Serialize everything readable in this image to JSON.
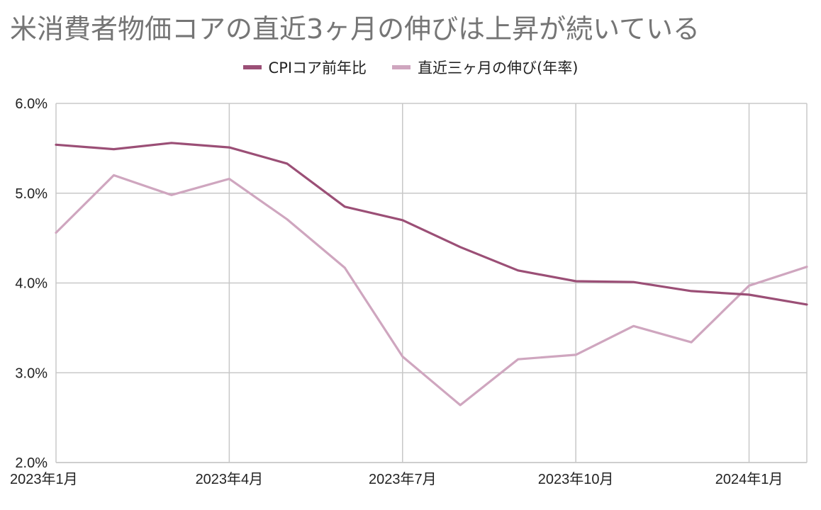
{
  "chart_data": {
    "type": "line",
    "title": "米消費者物価コアの直近3ヶ月の伸びは上昇が続いている",
    "xlabel": "",
    "ylabel": "",
    "x": [
      "2023年1月",
      "2023年2月",
      "2023年3月",
      "2023年4月",
      "2023年5月",
      "2023年6月",
      "2023年7月",
      "2023年8月",
      "2023年9月",
      "2023年10月",
      "2023年11月",
      "2023年12月",
      "2024年1月",
      "2024年2月"
    ],
    "x_tick_labels": [
      "2023年1月",
      "2023年4月",
      "2023年7月",
      "2023年10月",
      "2024年1月"
    ],
    "y_tick_labels": [
      "6.0%",
      "5.0%",
      "4.0%",
      "3.0%",
      "2.0%"
    ],
    "ylim": [
      2.0,
      6.0
    ],
    "grid": true,
    "legend_position": "top-center",
    "series": [
      {
        "name": "CPIコア前年比",
        "color": "#9b4f76",
        "values": [
          5.54,
          5.49,
          5.56,
          5.51,
          5.33,
          4.85,
          4.7,
          4.4,
          4.14,
          4.02,
          4.01,
          3.91,
          3.87,
          3.76
        ]
      },
      {
        "name": "直近三ヶ月の伸び(年率)",
        "color": "#cfa6bf",
        "values": [
          4.56,
          5.2,
          4.98,
          5.16,
          4.71,
          4.17,
          3.18,
          2.64,
          3.15,
          3.2,
          3.52,
          3.34,
          3.97,
          4.18
        ]
      }
    ]
  }
}
